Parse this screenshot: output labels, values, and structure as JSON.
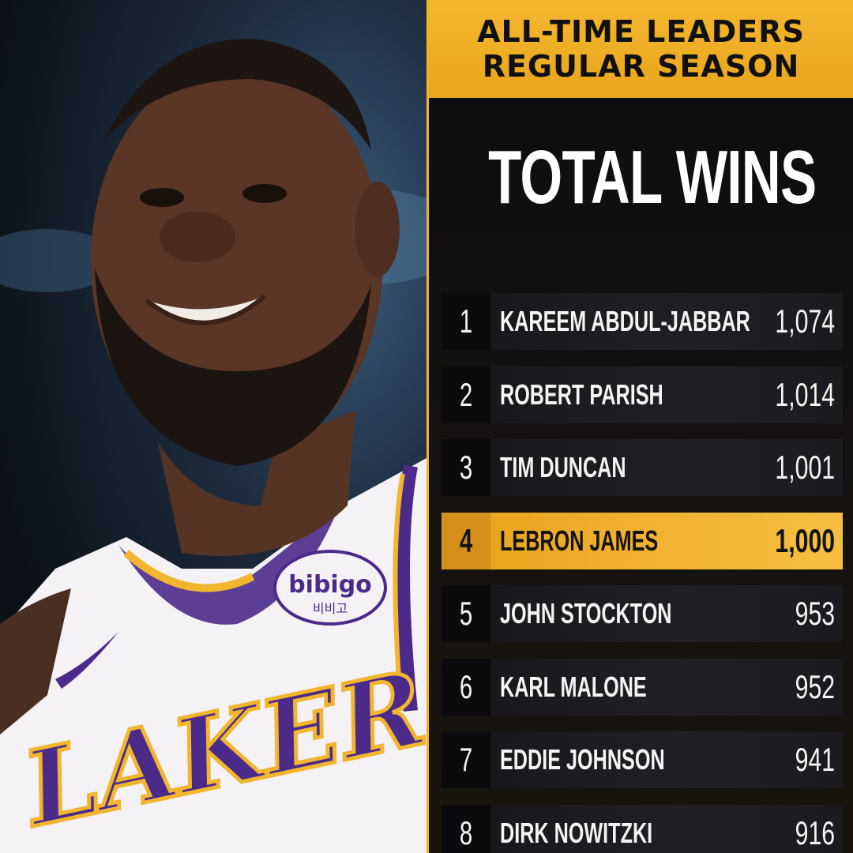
{
  "header": {
    "line1": "ALL-TIME LEADERS",
    "line2": "REGULAR SEASON"
  },
  "stat_title": "TOTAL WINS",
  "photo": {
    "jersey_text": "LAKERS",
    "patch_text": "bibigo",
    "patch_subtext": "비비고"
  },
  "colors": {
    "accent_gold": "#f3b42c",
    "panel_dark": "#0d0d0f",
    "row_dark": "#1c1c21",
    "lakers_purple": "#4b2a8a"
  },
  "leaders": [
    {
      "rank": "1",
      "name": "KAREEM ABDUL-JABBAR",
      "value": "1,074",
      "highlight": false
    },
    {
      "rank": "2",
      "name": "ROBERT PARISH",
      "value": "1,014",
      "highlight": false
    },
    {
      "rank": "3",
      "name": "TIM DUNCAN",
      "value": "1,001",
      "highlight": false
    },
    {
      "rank": "4",
      "name": "LEBRON JAMES",
      "value": "1,000",
      "highlight": true
    },
    {
      "rank": "5",
      "name": "JOHN STOCKTON",
      "value": "953",
      "highlight": false
    },
    {
      "rank": "6",
      "name": "KARL MALONE",
      "value": "952",
      "highlight": false
    },
    {
      "rank": "7",
      "name": "EDDIE JOHNSON",
      "value": "941",
      "highlight": false
    },
    {
      "rank": "8",
      "name": "DIRK NOWITZKI",
      "value": "916",
      "highlight": false
    }
  ]
}
